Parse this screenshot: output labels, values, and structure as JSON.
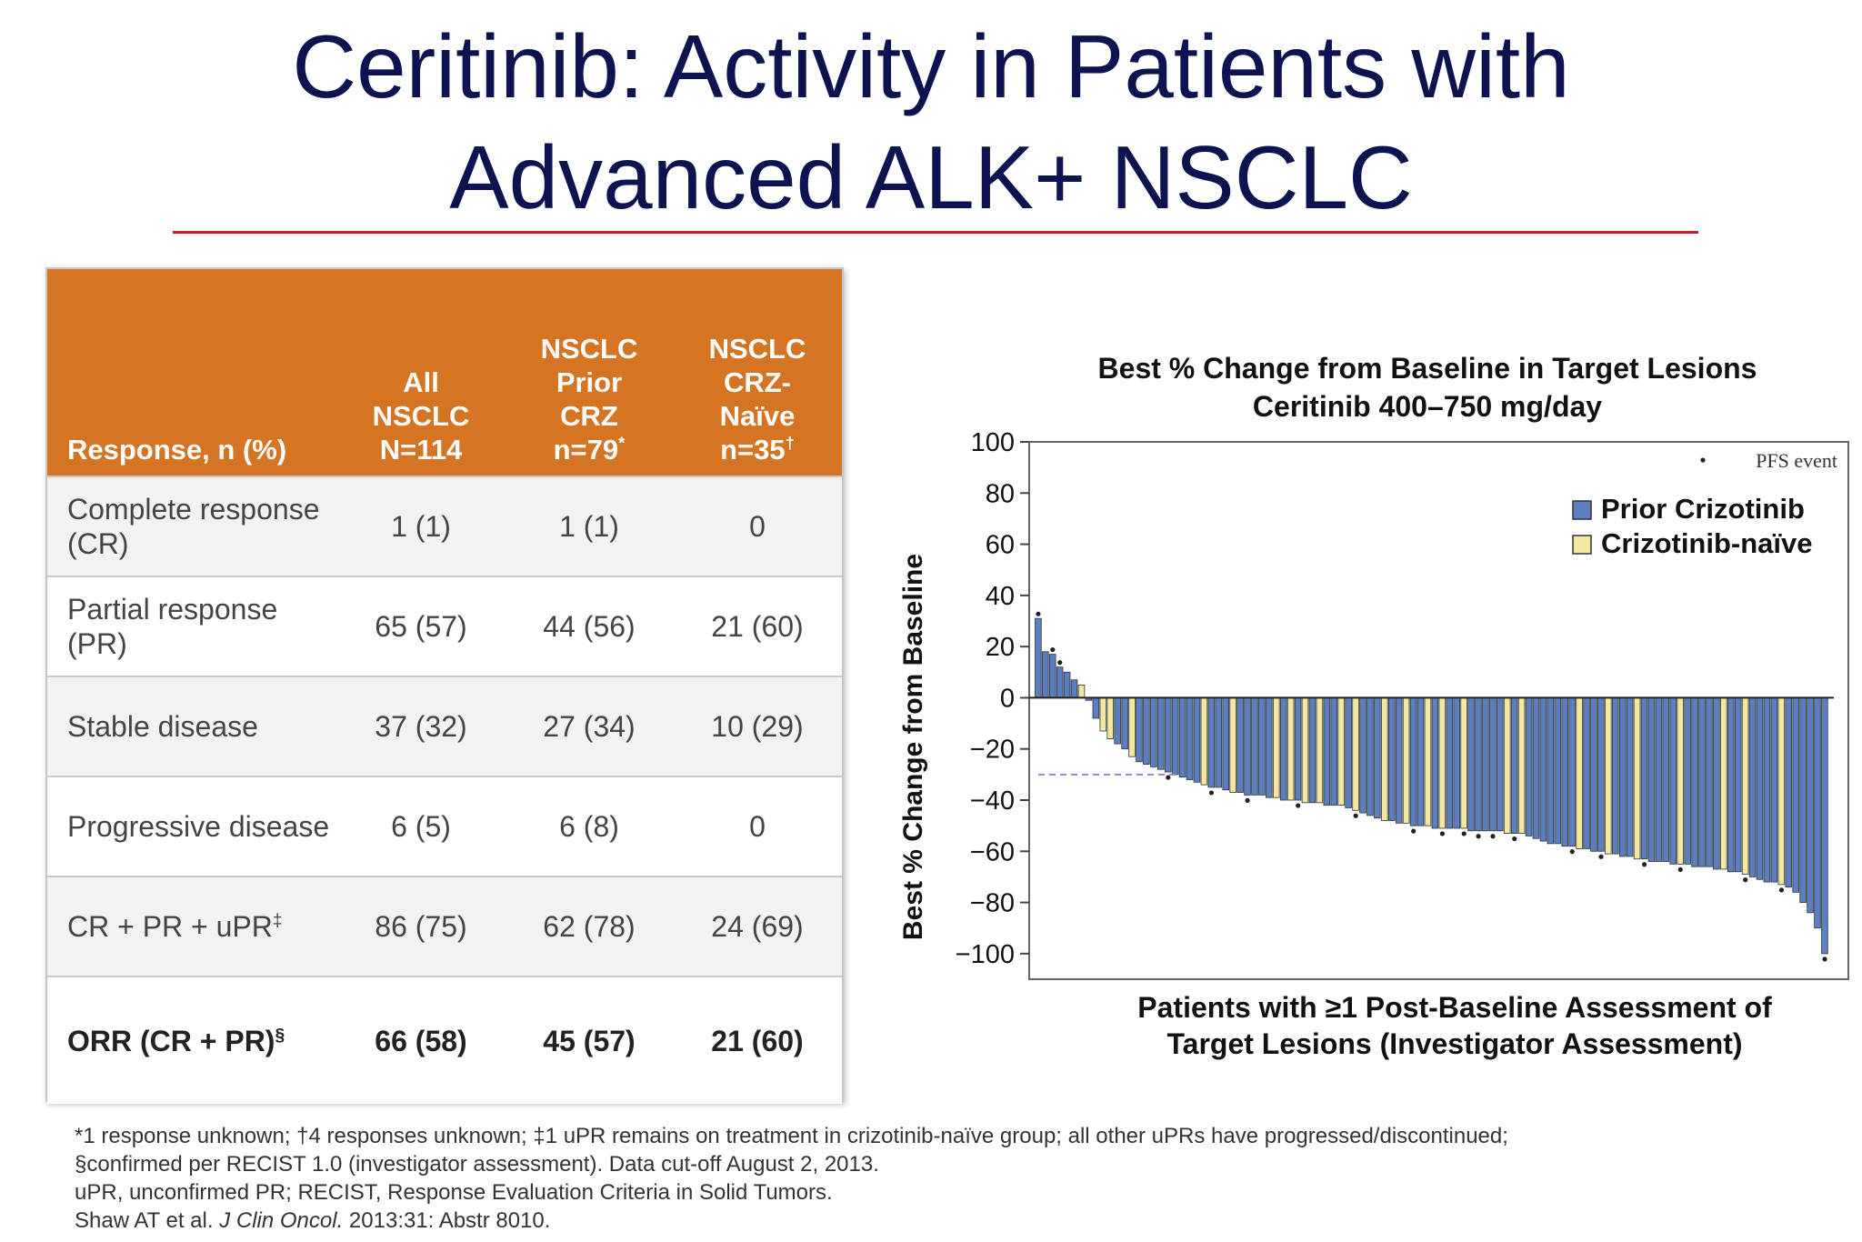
{
  "title": {
    "line1": "Ceritinib: Activity in Patients with",
    "line2": "Advanced ALK+ NSCLC"
  },
  "table": {
    "headers": [
      "Response, n (%)",
      "All NSCLC N=114",
      "NSCLC Prior CRZ n=79*",
      "NSCLC CRZ-Naïve n=35†"
    ],
    "rows": [
      {
        "label": "Complete response (CR)",
        "values": [
          "1 (1)",
          "1 (1)",
          "0"
        ]
      },
      {
        "label": "Partial response (PR)",
        "values": [
          "65 (57)",
          "44 (56)",
          "21 (60)"
        ]
      },
      {
        "label": "Stable disease",
        "values": [
          "37 (32)",
          "27 (34)",
          "10 (29)"
        ]
      },
      {
        "label": "Progressive disease",
        "values": [
          "6 (5)",
          "6 (8)",
          "0"
        ]
      },
      {
        "label": "CR + PR + uPR‡",
        "values": [
          "86 (75)",
          "62 (78)",
          "24 (69)"
        ]
      },
      {
        "label": "ORR (CR + PR)§",
        "values": [
          "66 (58)",
          "45 (57)",
          "21 (60)"
        ]
      }
    ]
  },
  "colors": {
    "title": "#0d1250",
    "rule": "#c8202a",
    "table_header": "#d57423",
    "prior_crizotinib": "#5b7fc0",
    "crizotinib_naive": "#f2e8a2",
    "reference_line": "#8a8ad0"
  },
  "chart_data": {
    "type": "bar",
    "title": "Best % Change from Baseline in Target Lesions",
    "subtitle": "Ceritinib 400–750 mg/day",
    "xlabel": "Patients with ≥1 Post-Baseline Assessment of Target Lesions (Investigator Assessment)",
    "ylabel": "Best % Change from Baseline",
    "ylim": [
      -110,
      100
    ],
    "yticks": [
      100,
      80,
      60,
      40,
      20,
      0,
      -20,
      -40,
      -60,
      -80,
      -100
    ],
    "reference_line": -30,
    "legend": {
      "position": "top-right",
      "pfs_label": "PFS event",
      "entries": [
        {
          "name": "Prior Crizotinib",
          "color": "#5b7fc0"
        },
        {
          "name": "Crizotinib-naïve",
          "color": "#f2e8a2"
        }
      ]
    },
    "values": [
      31,
      18,
      17,
      12,
      10,
      7,
      5,
      -1,
      -8,
      -13,
      -16,
      -18,
      -20,
      -23,
      -25,
      -26,
      -27,
      -28,
      -29,
      -30,
      -31,
      -32,
      -33,
      -34,
      -35,
      -35,
      -36,
      -37,
      -37,
      -38,
      -38,
      -38,
      -39,
      -39,
      -40,
      -40,
      -40,
      -41,
      -41,
      -41,
      -42,
      -42,
      -42,
      -43,
      -44,
      -45,
      -46,
      -47,
      -48,
      -48,
      -49,
      -49,
      -50,
      -50,
      -50,
      -51,
      -51,
      -51,
      -51,
      -51,
      -52,
      -52,
      -52,
      -52,
      -52,
      -53,
      -53,
      -53,
      -54,
      -55,
      -56,
      -57,
      -57,
      -58,
      -58,
      -59,
      -59,
      -60,
      -60,
      -61,
      -61,
      -62,
      -62,
      -63,
      -63,
      -64,
      -64,
      -64,
      -65,
      -65,
      -65,
      -66,
      -66,
      -66,
      -67,
      -67,
      -68,
      -68,
      -69,
      -70,
      -71,
      -72,
      -72,
      -73,
      -74,
      -76,
      -80,
      -84,
      -90,
      -100
    ],
    "groups": [
      "P",
      "P",
      "P",
      "P",
      "P",
      "P",
      "N",
      "P",
      "P",
      "N",
      "N",
      "P",
      "P",
      "N",
      "P",
      "P",
      "P",
      "P",
      "P",
      "P",
      "P",
      "P",
      "P",
      "N",
      "P",
      "P",
      "P",
      "N",
      "P",
      "P",
      "P",
      "P",
      "P",
      "N",
      "P",
      "N",
      "P",
      "N",
      "P",
      "N",
      "P",
      "P",
      "N",
      "P",
      "N",
      "P",
      "P",
      "P",
      "N",
      "P",
      "P",
      "N",
      "P",
      "P",
      "N",
      "P",
      "N",
      "P",
      "P",
      "N",
      "P",
      "P",
      "P",
      "P",
      "P",
      "N",
      "P",
      "N",
      "P",
      "P",
      "P",
      "P",
      "P",
      "P",
      "P",
      "N",
      "P",
      "P",
      "P",
      "N",
      "P",
      "P",
      "P",
      "N",
      "P",
      "P",
      "P",
      "P",
      "P",
      "N",
      "P",
      "P",
      "P",
      "P",
      "P",
      "N",
      "P",
      "P",
      "N",
      "P",
      "P",
      "P",
      "P",
      "N",
      "P",
      "P",
      "P",
      "P",
      "P",
      "P"
    ],
    "pfs_events": [
      0,
      2,
      3,
      18,
      24,
      29,
      36,
      44,
      52,
      56,
      59,
      61,
      63,
      66,
      74,
      78,
      84,
      89,
      98,
      103,
      109
    ]
  },
  "footnotes": [
    "*1 response unknown; †4 responses unknown; ‡1 uPR remains on treatment in crizotinib-naïve group; all other uPRs have progressed/discontinued;",
    "§confirmed per RECIST 1.0 (investigator assessment). Data cut-off August 2, 2013.",
    "uPR, unconfirmed PR; RECIST, Response Evaluation Criteria in Solid Tumors."
  ],
  "citation": {
    "authors": "Shaw AT et al.",
    "journal": "J Clin Oncol.",
    "details": "2013:31: Abstr 8010."
  }
}
